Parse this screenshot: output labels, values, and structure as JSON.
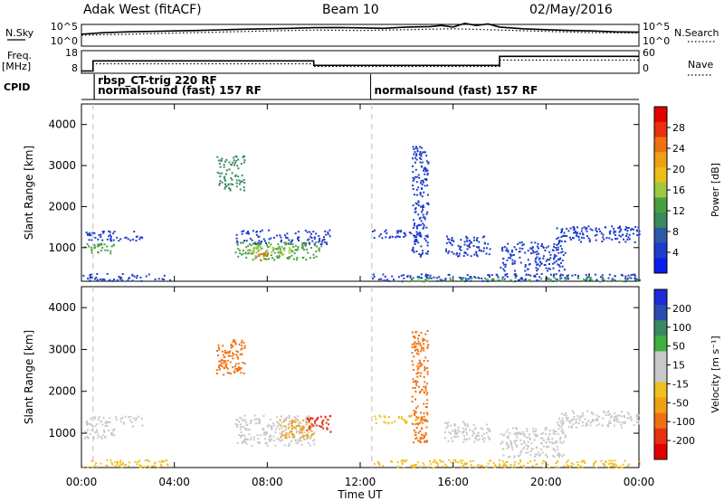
{
  "header": {
    "station": "Adak West (fitACF)",
    "beam": "Beam 10",
    "date": "02/May/2016"
  },
  "side_labels": {
    "nsky": "N.Sky",
    "freq_line1": "Freq.",
    "freq_line2": "[MHz]",
    "cpid": "CPID",
    "nsearch": "N.Search",
    "nave": "Nave"
  },
  "cpid_labels": [
    {
      "text": "rbsp_CT-trig 220 RF",
      "hour": 0.55
    },
    {
      "text": "normalsound (fast) 157 RF",
      "hour": 0.55
    },
    {
      "text": "normalsound (fast) 157 RF",
      "hour": 12.45
    }
  ],
  "chart_data": [
    {
      "type": "line",
      "name": "noise",
      "left_ticks": [
        "10^5",
        "10^0"
      ],
      "right_ticks": [
        "10^5",
        "10^0"
      ],
      "series": [
        {
          "name": "N.Sky",
          "style": "solid",
          "x": [
            0,
            1,
            2,
            3,
            4,
            5,
            6,
            7,
            8,
            9,
            10,
            11,
            12,
            13,
            14,
            15,
            15.5,
            16,
            16.5,
            17,
            17.5,
            18,
            19,
            20,
            21,
            22,
            23,
            24
          ],
          "y": [
            0.55,
            0.62,
            0.66,
            0.68,
            0.7,
            0.72,
            0.75,
            0.78,
            0.8,
            0.82,
            0.85,
            0.86,
            0.84,
            0.82,
            0.88,
            0.9,
            0.95,
            0.88,
            1.05,
            0.95,
            1.02,
            0.88,
            0.8,
            0.76,
            0.72,
            0.7,
            0.66,
            0.64
          ]
        },
        {
          "name": "N.Search",
          "style": "dotted",
          "x": [
            0,
            2,
            4,
            6,
            8,
            10,
            12,
            14,
            16,
            18,
            20,
            22,
            24
          ],
          "y": [
            0.5,
            0.55,
            0.6,
            0.65,
            0.7,
            0.74,
            0.72,
            0.76,
            0.8,
            0.74,
            0.68,
            0.62,
            0.6
          ]
        }
      ]
    },
    {
      "type": "line",
      "name": "frequency",
      "left_ticks": [
        "18",
        "8"
      ],
      "right_ticks": [
        "60",
        "0"
      ],
      "series": [
        {
          "name": "Freq",
          "style": "solid",
          "x": [
            0,
            0.5,
            0.5,
            10,
            10,
            18,
            18,
            24
          ],
          "y": [
            0.1,
            0.1,
            0.55,
            0.55,
            0.35,
            0.35,
            0.75,
            0.75
          ]
        },
        {
          "name": "Nave",
          "style": "dotted",
          "x": [
            0,
            0.5,
            0.5,
            10,
            10,
            18,
            18,
            24
          ],
          "y": [
            0.1,
            0.1,
            0.42,
            0.42,
            0.3,
            0.3,
            0.58,
            0.58
          ]
        }
      ]
    },
    {
      "type": "heatmap",
      "name": "power",
      "ylabel": "Slant Range [km]",
      "yticks": [
        "1000",
        "2000",
        "3000",
        "4000"
      ],
      "ylim": [
        180,
        4500
      ],
      "colorbar": {
        "label": "Power [dB]",
        "ticks": [
          "4",
          "8",
          "12",
          "16",
          "20",
          "24",
          "28"
        ],
        "colors": [
          "#0a1ef0",
          "#1e3ccc",
          "#2c5aa8",
          "#3a8a60",
          "#4aa040",
          "#a0c840",
          "#e8c018",
          "#f0a010",
          "#f07010",
          "#e83010",
          "#e00000"
        ]
      },
      "blobs": [
        {
          "x0": 0.1,
          "x1": 1.4,
          "r0": 870,
          "r1": 1120,
          "c": "#4aa040"
        },
        {
          "x0": 0.1,
          "x1": 2.6,
          "r0": 1180,
          "r1": 1420,
          "c": "#1e3ccc"
        },
        {
          "x0": 0.0,
          "x1": 3.8,
          "r0": 200,
          "r1": 380,
          "c": "#1e3ccc"
        },
        {
          "x0": 5.8,
          "x1": 7.0,
          "r0": 2400,
          "r1": 3250,
          "c": "#3a8a60"
        },
        {
          "x0": 6.6,
          "x1": 10.7,
          "r0": 1100,
          "r1": 1450,
          "c": "#1e3ccc"
        },
        {
          "x0": 6.6,
          "x1": 10.3,
          "r0": 720,
          "r1": 1150,
          "c": "#4aa040"
        },
        {
          "x0": 7.3,
          "x1": 9.0,
          "r0": 800,
          "r1": 1050,
          "c": "#a0c840"
        },
        {
          "x0": 7.6,
          "x1": 8.2,
          "r0": 700,
          "r1": 900,
          "c": "#f07010"
        },
        {
          "x0": 12.5,
          "x1": 14.5,
          "r0": 1250,
          "r1": 1450,
          "c": "#1e3ccc"
        },
        {
          "x0": 14.2,
          "x1": 14.9,
          "r0": 800,
          "r1": 3500,
          "c": "#1e3ccc"
        },
        {
          "x0": 15.6,
          "x1": 17.6,
          "r0": 800,
          "r1": 1300,
          "c": "#1e3ccc"
        },
        {
          "x0": 20.4,
          "x1": 24.0,
          "r0": 1150,
          "r1": 1550,
          "c": "#1e3ccc"
        },
        {
          "x0": 18.0,
          "x1": 20.8,
          "r0": 450,
          "r1": 1150,
          "c": "#1e3ccc"
        },
        {
          "x0": 12.5,
          "x1": 24.0,
          "r0": 190,
          "r1": 380,
          "c": "#1e3ccc"
        },
        {
          "x0": 14.0,
          "x1": 24.0,
          "r0": 190,
          "r1": 300,
          "c": "#4aa040"
        }
      ]
    },
    {
      "type": "heatmap",
      "name": "velocity",
      "ylabel": "Slant Range [km]",
      "yticks": [
        "1000",
        "2000",
        "3000",
        "4000"
      ],
      "ylim": [
        180,
        4500
      ],
      "colorbar": {
        "label": "Velocity [m s⁻¹]",
        "ticks": [
          "200",
          "100",
          "50",
          "15",
          "-15",
          "-50",
          "-100",
          "-200"
        ],
        "colors": [
          "#1e2ad8",
          "#2c4cb0",
          "#3a8a60",
          "#40b040",
          "#c8c8c8",
          "#c8c8c8",
          "#f0c020",
          "#f0a010",
          "#f07010",
          "#e83010",
          "#e00000"
        ]
      },
      "blobs": [
        {
          "x0": 0.1,
          "x1": 1.4,
          "r0": 870,
          "r1": 1120,
          "c": "#c8c8c8"
        },
        {
          "x0": 0.1,
          "x1": 2.6,
          "r0": 1180,
          "r1": 1420,
          "c": "#c8c8c8"
        },
        {
          "x0": 0.0,
          "x1": 3.8,
          "r0": 200,
          "r1": 380,
          "c": "#f0c020"
        },
        {
          "x0": 5.8,
          "x1": 7.0,
          "r0": 2400,
          "r1": 3250,
          "c": "#f07010"
        },
        {
          "x0": 6.6,
          "x1": 10.0,
          "r0": 720,
          "r1": 1450,
          "c": "#c8c8c8"
        },
        {
          "x0": 8.5,
          "x1": 10.0,
          "r0": 900,
          "r1": 1350,
          "c": "#f0a010"
        },
        {
          "x0": 9.6,
          "x1": 10.7,
          "r0": 1050,
          "r1": 1450,
          "c": "#e83010"
        },
        {
          "x0": 12.5,
          "x1": 14.5,
          "r0": 1250,
          "r1": 1450,
          "c": "#f0c020"
        },
        {
          "x0": 14.2,
          "x1": 14.9,
          "r0": 800,
          "r1": 3500,
          "c": "#f07010"
        },
        {
          "x0": 15.6,
          "x1": 17.6,
          "r0": 800,
          "r1": 1300,
          "c": "#c8c8c8"
        },
        {
          "x0": 20.4,
          "x1": 24.0,
          "r0": 1150,
          "r1": 1550,
          "c": "#c8c8c8"
        },
        {
          "x0": 18.0,
          "x1": 20.8,
          "r0": 450,
          "r1": 1150,
          "c": "#c8c8c8"
        },
        {
          "x0": 12.5,
          "x1": 24.0,
          "r0": 190,
          "r1": 380,
          "c": "#f0c020"
        }
      ]
    }
  ],
  "x_axis": {
    "label": "Time UT",
    "ticks": [
      "00:00",
      "04:00",
      "08:00",
      "12:00",
      "16:00",
      "20:00",
      "00:00"
    ],
    "range_hours": [
      0,
      24
    ]
  }
}
